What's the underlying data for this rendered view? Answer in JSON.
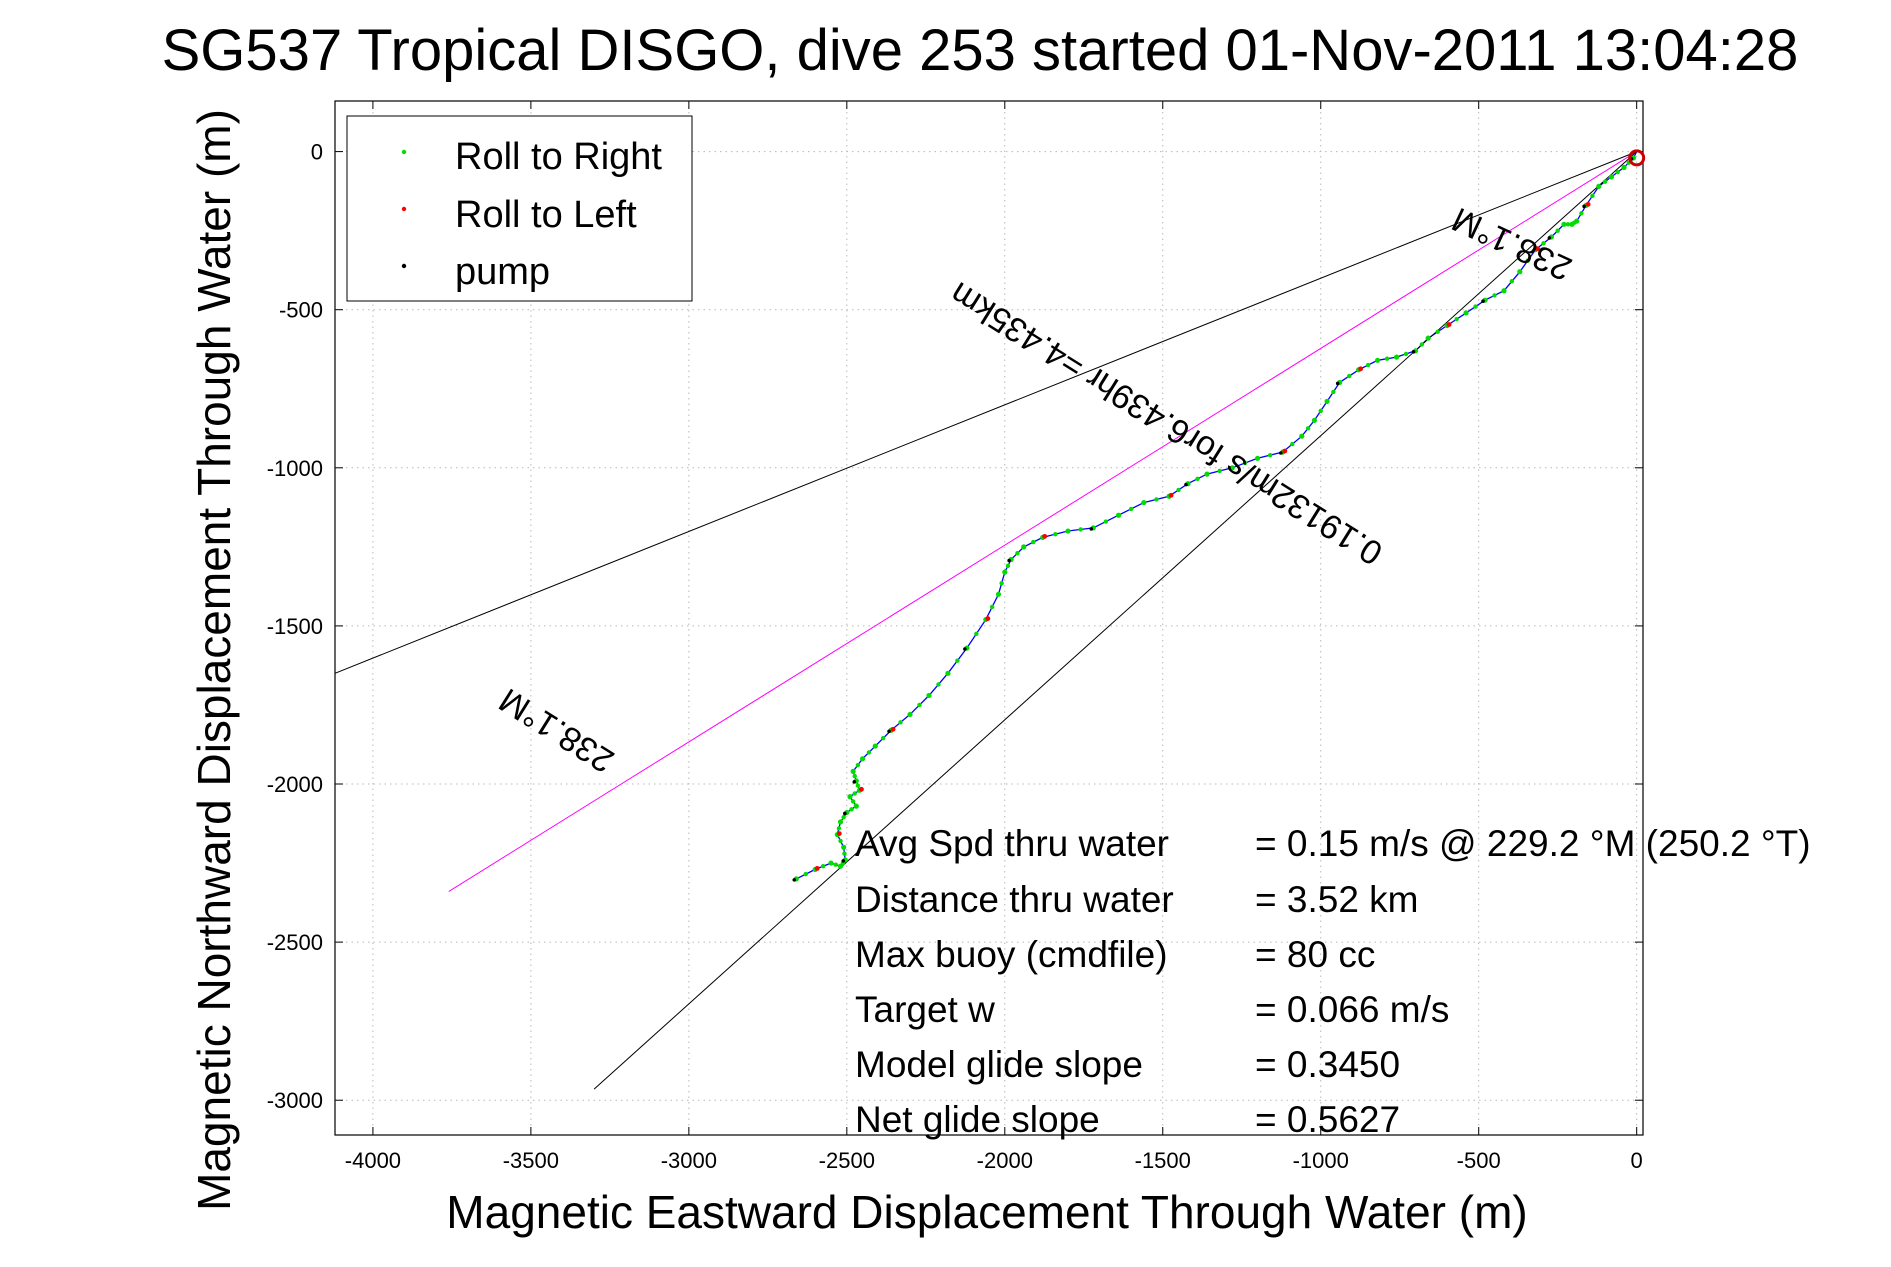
{
  "chart_data": {
    "type": "line",
    "title": "SG537 Tropical DISGO, dive 253 started 01-Nov-2011 13:04:28",
    "xlabel": "Magnetic Eastward Displacement Through Water (m)",
    "ylabel": "Magnetic Northward Displacement Through Water (m)",
    "xlim": [
      -4120,
      20
    ],
    "ylim": [
      -3110,
      160
    ],
    "xticks": [
      -4000,
      -3500,
      -3000,
      -2500,
      -2000,
      -1500,
      -1000,
      -500,
      0
    ],
    "yticks": [
      0,
      -500,
      -1000,
      -1500,
      -2000,
      -2500,
      -3000
    ],
    "xtick_labels": [
      "-4000",
      "-3500",
      "-3000",
      "-2500",
      "-2000",
      "-1500",
      "-1000",
      "-500",
      "0"
    ],
    "ytick_labels": [
      "0",
      "-500",
      "-1000",
      "-1500",
      "-2000",
      "-2500",
      "-3000"
    ],
    "grid": true,
    "legend_position": "top-left",
    "legend": [
      {
        "label": "Roll to Right",
        "color": "#00dd00"
      },
      {
        "label": "Roll to Left",
        "color": "#ff0000"
      },
      {
        "label": "pump",
        "color": "#000000"
      }
    ],
    "series": [
      {
        "color": "#0000ff",
        "x": [
          0,
          -10,
          -40,
          -80,
          -120,
          -160,
          -190,
          -205,
          -230,
          -270,
          -320,
          -370,
          -420,
          -480,
          -540,
          -600,
          -660,
          -700,
          -760,
          -820,
          -880,
          -940,
          -980,
          -1020,
          -1060,
          -1120,
          -1200,
          -1280,
          -1360,
          -1420,
          -1480,
          -1560,
          -1640,
          -1720,
          -1800,
          -1880,
          -1940,
          -1980,
          -2000,
          -2020,
          -2060,
          -2120,
          -2180,
          -2240,
          -2300,
          -2360,
          -2410,
          -2450,
          -2480,
          -2470,
          -2460,
          -2490,
          -2470,
          -2500,
          -2520,
          -2530,
          -2510,
          -2505,
          -2520,
          -2550,
          -2600,
          -2660
        ],
        "y": [
          0,
          -20,
          -50,
          -80,
          -110,
          -170,
          -220,
          -230,
          -230,
          -270,
          -310,
          -380,
          -440,
          -470,
          -510,
          -550,
          -590,
          -630,
          -650,
          -660,
          -690,
          -730,
          -790,
          -850,
          -900,
          -950,
          -970,
          -1000,
          -1020,
          -1050,
          -1090,
          -1110,
          -1150,
          -1190,
          -1200,
          -1220,
          -1250,
          -1290,
          -1330,
          -1400,
          -1480,
          -1570,
          -1650,
          -1720,
          -1780,
          -1830,
          -1880,
          -1920,
          -1960,
          -1990,
          -2020,
          -2040,
          -2070,
          -2090,
          -2120,
          -2160,
          -2200,
          -2240,
          -2260,
          -2250,
          -2270,
          -2300
        ]
      },
      {
        "color": "#ff00ff",
        "x": [
          0,
          -3760
        ],
        "y": [
          0,
          -2340
        ]
      },
      {
        "color": "#000000",
        "x": [
          0,
          -4120
        ],
        "y": [
          0,
          -1650
        ]
      },
      {
        "color": "#000000",
        "x": [
          0,
          -3300
        ],
        "y": [
          0,
          -2965
        ]
      }
    ],
    "markers": {
      "roll_right_color": "#00dd00",
      "roll_left_color": "#ff0000",
      "pump_color": "#000000",
      "start_marker_color": "#cc0000",
      "start_marker": {
        "x": 0,
        "y": -20
      }
    },
    "line_labels": [
      {
        "text": "238.1°M",
        "x": -3400,
        "y": -1800,
        "angle": 32
      },
      {
        "text": "0.19132m/s for6.439hr =4.435km",
        "x": -1470,
        "y": -830,
        "angle": 32
      },
      {
        "text": "238.1°M",
        "x": -380,
        "y": -260,
        "angle": 25
      }
    ],
    "annotations": [
      {
        "label": "Avg Spd thru water",
        "value": "=  0.15 m/s @ 229.2 °M (250.2 °T)"
      },
      {
        "label": "Distance thru water",
        "value": "=  3.52 km"
      },
      {
        "label": "Max buoy (cmdfile)",
        "value": "= 80 cc"
      },
      {
        "label": "Target w",
        "value": "= 0.066 m/s"
      },
      {
        "label": "Model glide slope",
        "value": "= 0.3450"
      },
      {
        "label": "Net glide slope",
        "value": "= 0.5627"
      }
    ]
  }
}
